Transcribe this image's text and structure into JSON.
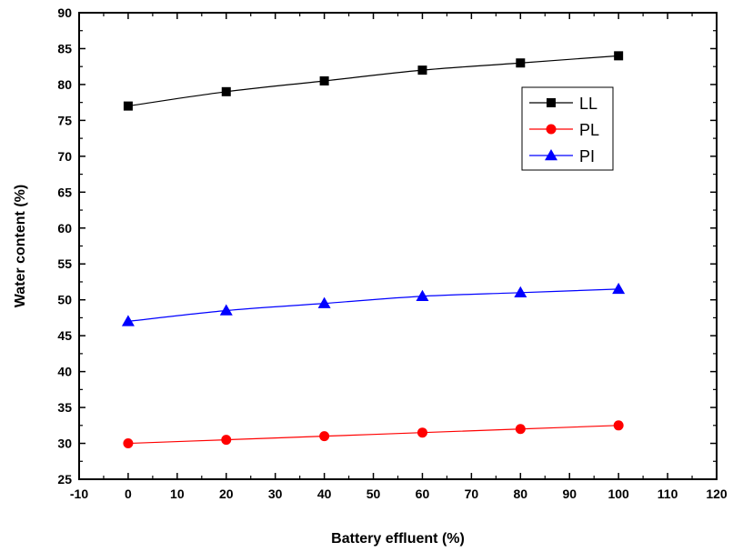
{
  "chart_data": {
    "type": "line",
    "title": "",
    "xlabel": "Battery effluent (%)",
    "ylabel": "Water content (%)",
    "xlim": [
      -10,
      120
    ],
    "ylim": [
      25,
      90
    ],
    "xticks": [
      -10,
      0,
      10,
      20,
      30,
      40,
      50,
      60,
      70,
      80,
      90,
      100,
      110,
      120
    ],
    "yticks": [
      25,
      30,
      35,
      40,
      45,
      50,
      55,
      60,
      65,
      70,
      75,
      80,
      85,
      90
    ],
    "grid": false,
    "legend_position": "top-right",
    "x": [
      0,
      20,
      40,
      60,
      80,
      100
    ],
    "series": [
      {
        "name": "LL",
        "values": [
          77,
          79,
          80.5,
          82,
          83,
          84
        ],
        "color": "#000000",
        "marker": "square"
      },
      {
        "name": "PL",
        "values": [
          30,
          30.5,
          31,
          31.5,
          32,
          32.5
        ],
        "color": "#ff0000",
        "marker": "circle"
      },
      {
        "name": "PI",
        "values": [
          47,
          48.5,
          49.5,
          50.5,
          51,
          51.5
        ],
        "color": "#0000ff",
        "marker": "triangle"
      }
    ]
  }
}
